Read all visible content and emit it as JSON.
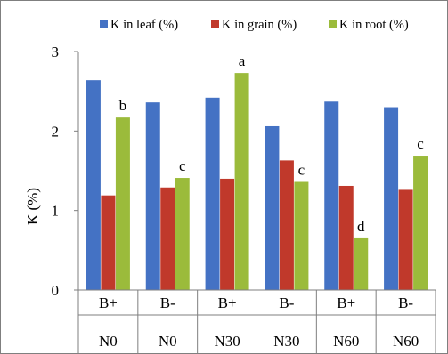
{
  "chart_data": {
    "type": "bar",
    "title": "",
    "xlabel": "",
    "ylabel": "K (%)",
    "ylim": [
      0,
      3
    ],
    "yticks": [
      "0",
      "1",
      "2",
      "3"
    ],
    "grid": false,
    "legend_position": "top",
    "categories": [
      {
        "boron": "B+",
        "nitrogen": "N0"
      },
      {
        "boron": "B-",
        "nitrogen": "N0"
      },
      {
        "boron": "B+",
        "nitrogen": "N30"
      },
      {
        "boron": "B-",
        "nitrogen": "N30"
      },
      {
        "boron": "B+",
        "nitrogen": "N60"
      },
      {
        "boron": "B-",
        "nitrogen": "N60"
      }
    ],
    "series": [
      {
        "name": "K in leaf (%)",
        "color": "#4472C4",
        "values": [
          2.64,
          2.36,
          2.42,
          2.06,
          2.37,
          2.3
        ]
      },
      {
        "name": "K in grain (%)",
        "color": "#C0392B",
        "values": [
          1.19,
          1.29,
          1.4,
          1.63,
          1.31,
          1.26
        ]
      },
      {
        "name": "K in root (%)",
        "color": "#9BBB3B",
        "values": [
          2.17,
          1.41,
          2.73,
          1.36,
          0.65,
          1.69
        ]
      }
    ],
    "annotations": {
      "series_index": 2,
      "labels": [
        "b",
        "c",
        "a",
        "c",
        "d",
        "c"
      ]
    }
  }
}
